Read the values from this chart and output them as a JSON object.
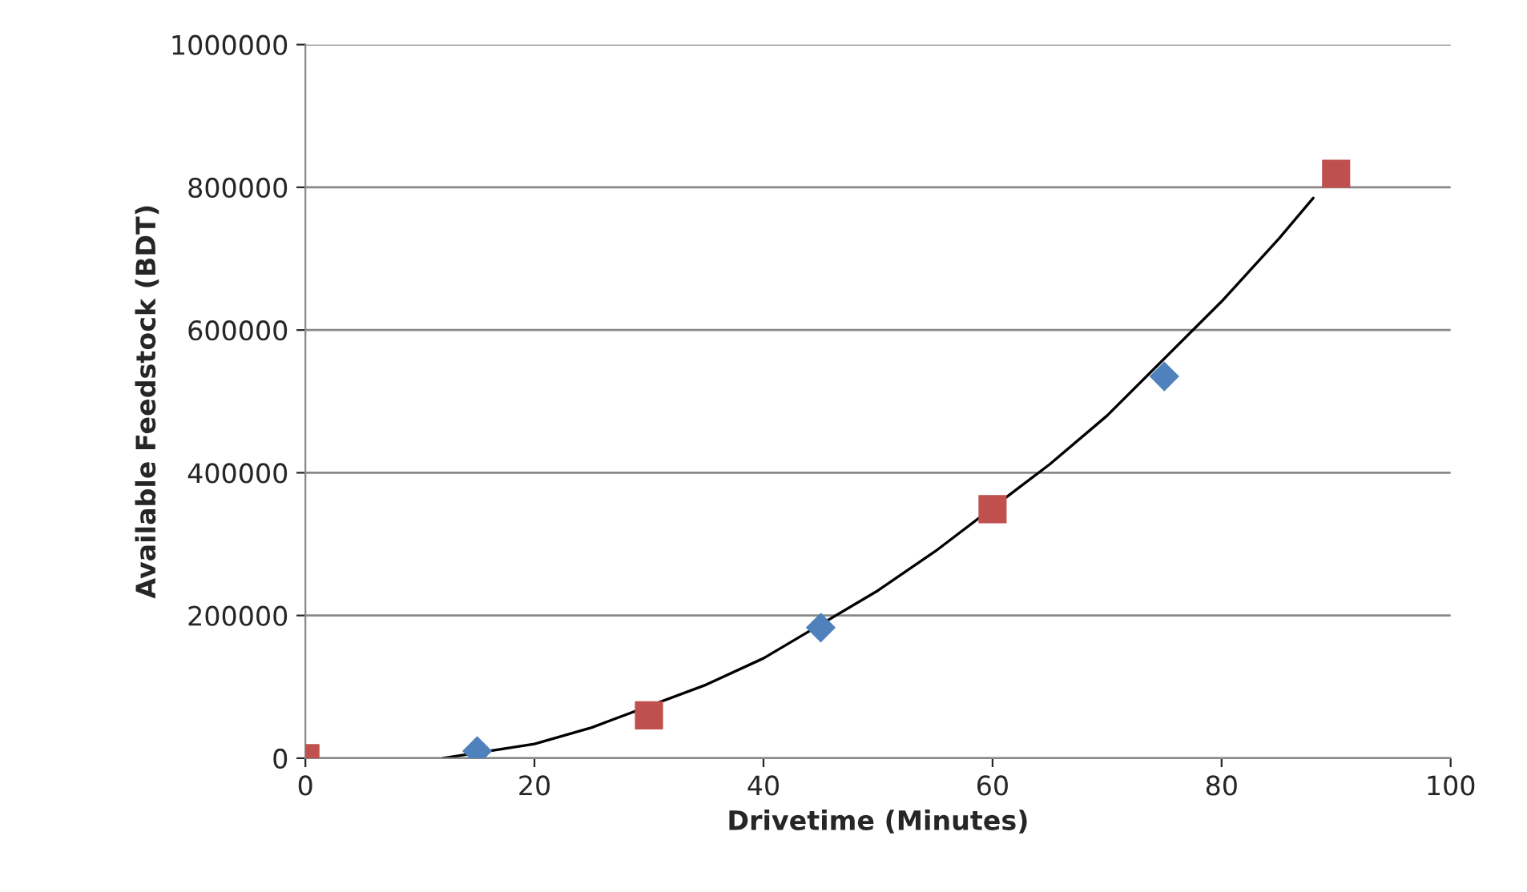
{
  "chart_data": {
    "type": "scatter",
    "xlabel": "Drivetime (Minutes)",
    "ylabel": "Available Feedstock (BDT)",
    "xlim": [
      0,
      100
    ],
    "xticks": [
      0,
      20,
      40,
      60,
      80,
      100
    ],
    "ylim": [
      0,
      1000000
    ],
    "yticks": [
      0,
      200000,
      400000,
      600000,
      800000,
      1000000
    ],
    "grid": "y",
    "legend": false,
    "series": [
      {
        "color": "#4f81bd",
        "marker": "diamond",
        "x": [
          15,
          45,
          75
        ],
        "values": [
          10000,
          183000,
          535000
        ]
      },
      {
        "color": "#c0504d",
        "marker": "square",
        "x": [
          0,
          30,
          60,
          90
        ],
        "values": [
          0,
          60000,
          349000,
          819000
        ]
      },
      {
        "type": "line",
        "color": "#000000",
        "marker": "none",
        "line_style": "solid",
        "x": [
          12,
          20,
          25,
          35,
          40,
          50,
          55,
          65,
          70,
          80,
          85,
          88
        ],
        "values": [
          0,
          20000,
          43000,
          103000,
          140000,
          235000,
          290000,
          412000,
          480000,
          640000,
          728000,
          785000
        ]
      }
    ]
  }
}
